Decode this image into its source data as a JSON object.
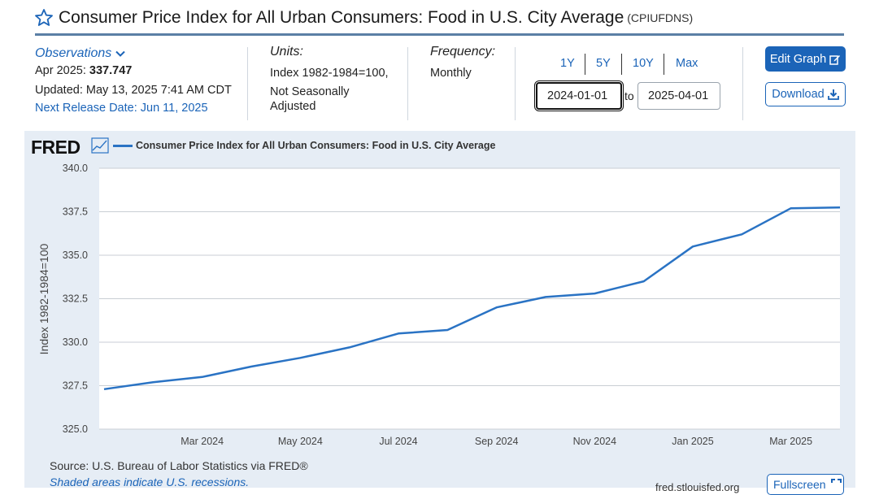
{
  "header": {
    "title": "Consumer Price Index for All Urban Consumers: Food in U.S. City Average",
    "series_id": "(CPIUFDNS)"
  },
  "observations": {
    "label": "Observations",
    "date_label": "Apr 2025:",
    "value": "337.747",
    "updated": "Updated: May 13, 2025 7:41 AM CDT",
    "next_release": "Next Release Date: Jun 11, 2025"
  },
  "units": {
    "label": "Units:",
    "line1": "Index 1982-1984=100,",
    "line2": "Not Seasonally",
    "line3": "Adjusted"
  },
  "frequency": {
    "label": "Frequency:",
    "value": "Monthly"
  },
  "range": {
    "buttons": [
      "1Y",
      "5Y",
      "10Y",
      "Max"
    ],
    "start": "2024-01-01",
    "to": "to",
    "end": "2025-04-01"
  },
  "actions": {
    "edit": "Edit Graph",
    "download": "Download",
    "fullscreen": "Fullscreen"
  },
  "chart_panel": {
    "logo": "FRED",
    "source": "Source: U.S. Bureau of Labor Statistics via FRED®",
    "shaded_note": "Shaded areas indicate U.S. recessions.",
    "site": "fred.stlouisfed.org"
  },
  "colors": {
    "accent": "#1b64b8",
    "line": "#2a73c4",
    "panel": "#e6edf5"
  },
  "chart_data": {
    "type": "line",
    "title": "",
    "ylabel": "Index 1982-1984=100",
    "xlabel": "",
    "ylim": [
      325.0,
      340.0
    ],
    "yticks": [
      "325.0",
      "327.5",
      "330.0",
      "332.5",
      "335.0",
      "337.5",
      "340.0"
    ],
    "xticks": [
      "Mar 2024",
      "May 2024",
      "Jul 2024",
      "Sep 2024",
      "Nov 2024",
      "Jan 2025",
      "Mar 2025"
    ],
    "grid": true,
    "legend_position": "top-left",
    "series": [
      {
        "name": "Consumer Price Index for All Urban Consumers: Food in U.S. City Average",
        "x": [
          "2024-01",
          "2024-02",
          "2024-03",
          "2024-04",
          "2024-05",
          "2024-06",
          "2024-07",
          "2024-08",
          "2024-09",
          "2024-10",
          "2024-11",
          "2024-12",
          "2025-01",
          "2025-02",
          "2025-03",
          "2025-04"
        ],
        "values": [
          327.3,
          327.7,
          328.0,
          328.6,
          329.1,
          329.7,
          330.5,
          330.7,
          332.0,
          332.6,
          332.8,
          333.5,
          335.5,
          336.2,
          337.7,
          337.747
        ]
      }
    ]
  }
}
